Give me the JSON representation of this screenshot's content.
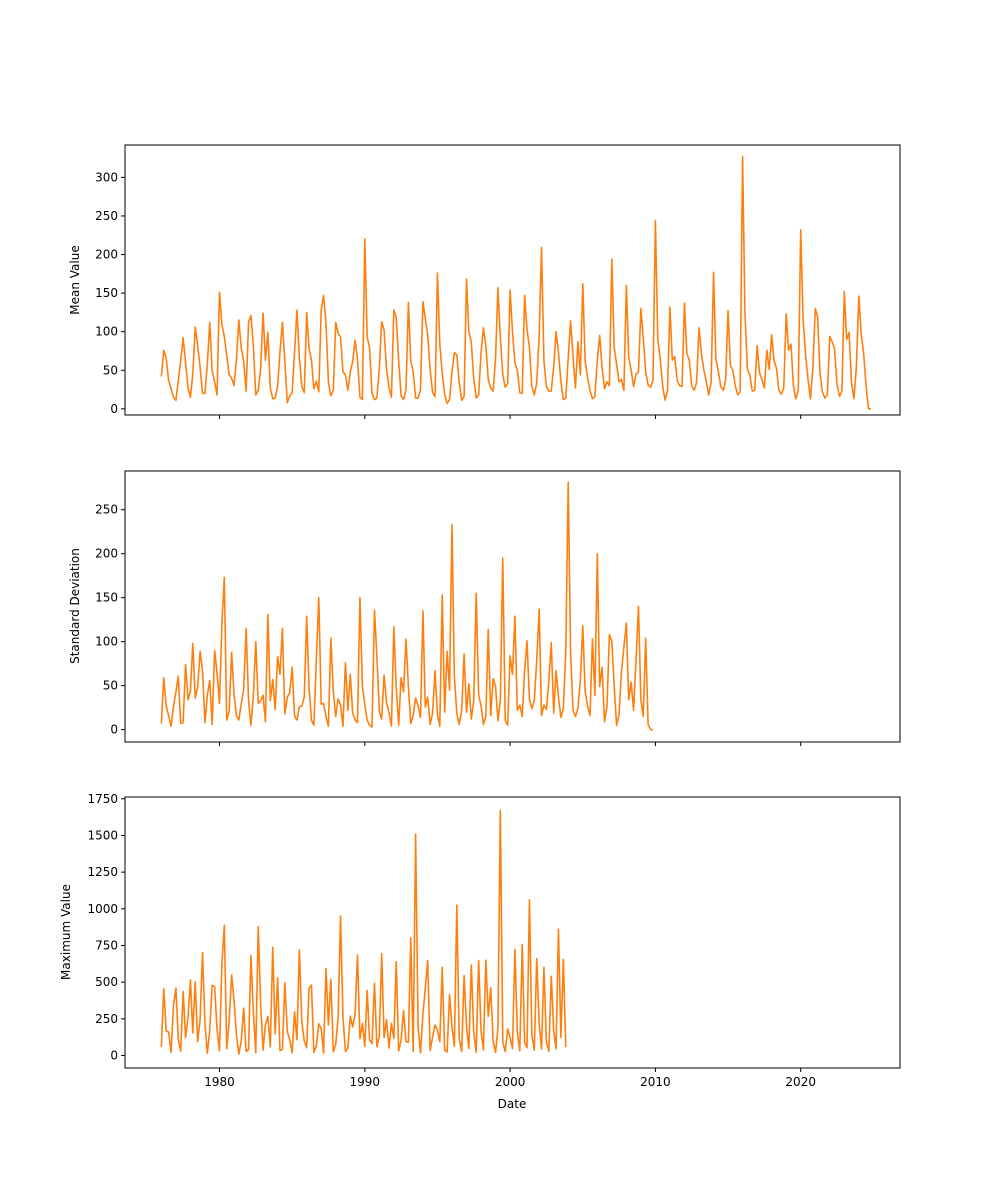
{
  "chart_data": {
    "type": "line",
    "line_color": "#ff7f0e",
    "x_axis": {
      "label": "Date",
      "range": [
        "1973-07-01",
        "2026-11-01"
      ],
      "ticks": [
        "1980",
        "1990",
        "2000",
        "2010",
        "2020"
      ],
      "tick_labels_shown_on": "bottom panel only (shared x axis)"
    },
    "x": [
      "1976-01",
      "1976-03",
      "1976-05",
      "1976-07",
      "1976-09",
      "1976-11",
      "1977-01",
      "1977-03",
      "1977-05",
      "1977-07",
      "1977-09",
      "1977-11",
      "1978-01",
      "1978-03",
      "1978-05",
      "1978-07",
      "1978-09",
      "1978-11",
      "1979-01",
      "1979-03",
      "1979-05",
      "1979-07",
      "1979-09",
      "1979-11",
      "1980-01",
      "1980-03",
      "1980-05",
      "1980-07",
      "1980-09",
      "1980-11",
      "1981-01",
      "1981-03",
      "1981-05",
      "1981-07",
      "1981-09",
      "1981-11",
      "1982-01",
      "1982-03",
      "1982-05",
      "1982-07",
      "1982-09",
      "1982-11",
      "1983-01",
      "1983-03",
      "1983-05",
      "1983-07",
      "1983-09",
      "1983-11",
      "1984-01",
      "1984-03",
      "1984-05",
      "1984-07",
      "1984-09",
      "1984-11",
      "1985-01",
      "1985-03",
      "1985-05",
      "1985-07",
      "1985-09",
      "1985-11",
      "1986-01",
      "1986-03",
      "1986-05",
      "1986-07",
      "1986-09",
      "1986-11",
      "1987-01",
      "1987-03",
      "1987-05",
      "1987-07",
      "1987-09",
      "1987-11",
      "1988-01",
      "1988-03",
      "1988-05",
      "1988-07",
      "1988-09",
      "1988-11",
      "1989-01",
      "1989-03",
      "1989-05",
      "1989-07",
      "1989-09",
      "1989-11",
      "1990-01",
      "1990-03",
      "1990-05",
      "1990-07",
      "1990-09",
      "1990-11",
      "1991-01",
      "1991-03",
      "1991-05",
      "1991-07",
      "1991-09",
      "1991-11",
      "1992-01",
      "1992-03",
      "1992-05",
      "1992-07",
      "1992-09",
      "1992-11",
      "1993-01",
      "1993-03",
      "1993-05",
      "1993-07",
      "1993-09",
      "1993-11",
      "1994-01",
      "1994-03",
      "1994-05",
      "1994-07",
      "1994-09",
      "1994-11",
      "1995-01",
      "1995-03",
      "1995-05",
      "1995-07",
      "1995-09",
      "1995-11",
      "1996-01",
      "1996-03",
      "1996-05",
      "1996-07",
      "1996-09",
      "1996-11",
      "1997-01",
      "1997-03",
      "1997-05",
      "1997-07",
      "1997-09",
      "1997-11",
      "1998-01",
      "1998-03",
      "1998-05",
      "1998-07",
      "1998-09",
      "1998-11",
      "1999-01",
      "1999-03",
      "1999-05",
      "1999-07",
      "1999-09",
      "1999-11",
      "2000-01",
      "2000-03",
      "2000-05",
      "2000-07",
      "2000-09",
      "2000-11",
      "2001-01",
      "2001-03",
      "2001-05",
      "2001-07",
      "2001-09",
      "2001-11",
      "2002-01",
      "2002-03",
      "2002-05",
      "2002-07",
      "2002-09",
      "2002-11",
      "2003-01",
      "2003-03",
      "2003-05",
      "2003-07",
      "2003-09",
      "2003-11",
      "2004-01",
      "2004-03",
      "2004-05",
      "2004-07",
      "2004-09",
      "2004-11",
      "2005-01",
      "2005-03",
      "2005-05",
      "2005-07",
      "2005-09",
      "2005-11",
      "2006-01",
      "2006-03",
      "2006-05",
      "2006-07",
      "2006-09",
      "2006-11",
      "2007-01",
      "2007-03",
      "2007-05",
      "2007-07",
      "2007-09",
      "2007-11",
      "2008-01",
      "2008-03",
      "2008-05",
      "2008-07",
      "2008-09",
      "2008-11",
      "2009-01",
      "2009-03",
      "2009-05",
      "2009-07",
      "2009-09",
      "2009-11",
      "2010-01",
      "2010-03",
      "2010-05",
      "2010-07",
      "2010-09",
      "2010-11",
      "2011-01",
      "2011-03",
      "2011-05",
      "2011-07",
      "2011-09",
      "2011-11",
      "2012-01",
      "2012-03",
      "2012-05",
      "2012-07",
      "2012-09",
      "2012-11",
      "2013-01",
      "2013-03",
      "2013-05",
      "2013-07",
      "2013-09",
      "2013-11",
      "2014-01",
      "2014-03",
      "2014-05",
      "2014-07",
      "2014-09",
      "2014-11",
      "2015-01",
      "2015-03",
      "2015-05",
      "2015-07",
      "2015-09",
      "2015-11",
      "2016-01",
      "2016-03",
      "2016-05",
      "2016-07",
      "2016-09",
      "2016-11",
      "2017-01",
      "2017-03",
      "2017-05",
      "2017-07",
      "2017-09",
      "2017-11",
      "2018-01",
      "2018-03",
      "2018-05",
      "2018-07",
      "2018-09",
      "2018-11",
      "2019-01",
      "2019-03",
      "2019-05",
      "2019-07",
      "2019-09",
      "2019-11",
      "2020-01",
      "2020-03",
      "2020-05",
      "2020-07",
      "2020-09",
      "2020-11",
      "2021-01",
      "2021-03",
      "2021-05",
      "2021-07",
      "2021-09",
      "2021-11",
      "2022-01",
      "2022-03",
      "2022-05",
      "2022-07",
      "2022-09",
      "2022-11",
      "2023-01",
      "2023-03",
      "2023-05",
      "2023-07",
      "2023-09",
      "2023-11",
      "2024-01",
      "2024-03",
      "2024-05",
      "2024-07",
      "2024-09",
      "2024-11"
    ],
    "panels": [
      {
        "ylabel": "Mean Value",
        "ylim": [
          -8,
          342
        ],
        "yticks": [
          0,
          50,
          100,
          150,
          200,
          250,
          300
        ],
        "series": [
          {
            "values": [
              42,
              76,
              66,
              37,
              26,
              15,
              11,
              37,
              62,
              92,
              60,
              27,
              15,
              45,
              106,
              82,
              54,
              20,
              20,
              57,
              112,
              49,
              35,
              18,
              151,
              110,
              94,
              69,
              44,
              40,
              30,
              63,
              115,
              79,
              61,
              23,
              112,
              121,
              82,
              18,
              24,
              52,
              124,
              63,
              99,
              27,
              13,
              14,
              30,
              74,
              112,
              61,
              8,
              17,
              21,
              73,
              128,
              66,
              29,
              21,
              125,
              78,
              63,
              26,
              36,
              22,
              128,
              147,
              111,
              35,
              17,
              24,
              112,
              98,
              93,
              48,
              44,
              24,
              48,
              61,
              89,
              65,
              15,
              12,
              220,
              93,
              79,
              20,
              12,
              14,
              53,
              113,
              102,
              51,
              28,
              15,
              128,
              118,
              63,
              17,
              12,
              24,
              138,
              62,
              48,
              14,
              14,
              25,
              139,
              117,
              96,
              51,
              21,
              16,
              176,
              84,
              46,
              19,
              7,
              12,
              48,
              73,
              70,
              34,
              11,
              16,
              168,
              100,
              86,
              39,
              14,
              18,
              72,
              105,
              82,
              38,
              27,
              23,
              66,
              157,
              92,
              44,
              28,
              33,
              154,
              100,
              60,
              50,
              21,
              20,
              147,
              103,
              80,
              29,
              18,
              34,
              95,
              209,
              62,
              29,
              23,
              23,
              54,
              100,
              73,
              35,
              12,
              14,
              66,
              114,
              68,
              27,
              87,
              44,
              162,
              63,
              40,
              24,
              13,
              16,
              63,
              95,
              54,
              26,
              35,
              30,
              194,
              80,
              58,
              35,
              38,
              24,
              160,
              67,
              50,
              29,
              45,
              48,
              130,
              92,
              48,
              31,
              28,
              37,
              244,
              90,
              65,
              30,
              11,
              24,
              132,
              63,
              68,
              37,
              30,
              29,
              137,
              72,
              63,
              30,
              24,
              34,
              105,
              72,
              51,
              36,
              18,
              34,
              177,
              64,
              49,
              29,
              24,
              37,
              127,
              56,
              50,
              30,
              18,
              22,
              327,
              124,
              51,
              44,
              23,
              24,
              82,
              47,
              38,
              27,
              76,
              51,
              96,
              62,
              53,
              24,
              19,
              27,
              123,
              76,
              84,
              30,
              13,
              24,
              232,
              116,
              71,
              39,
              13,
              52,
              130,
              119,
              46,
              22,
              14,
              18,
              94,
              87,
              78,
              32,
              16,
              23,
              152,
              90,
              99,
              34,
              13,
              55,
              146,
              97,
              72,
              30,
              0,
              0
            ]
          }
        ]
      },
      {
        "ylabel": "Standard Deviation",
        "ylim": [
          -14,
          294
        ],
        "yticks": [
          0,
          50,
          100,
          150,
          200,
          250
        ],
        "series": [
          {
            "values": [
              7,
              59,
              27,
              16,
              4,
              26,
              43,
              61,
              7,
              8,
              74,
              34,
              44,
              98,
              36,
              48,
              89,
              67,
              8,
              39,
              56,
              6,
              90,
              64,
              30,
              120,
              173,
              11,
              21,
              88,
              40,
              16,
              11,
              29,
              46,
              115,
              33,
              5,
              38,
              100,
              30,
              33,
              39,
              9,
              131,
              33,
              57,
              23,
              83,
              63,
              115,
              18,
              37,
              42,
              71,
              16,
              11,
              26,
              27,
              37,
              129,
              48,
              11,
              5,
              80,
              150,
              29,
              30,
              15,
              4,
              104,
              43,
              15,
              35,
              28,
              4,
              76,
              22,
              63,
              19,
              11,
              8,
              150,
              50,
              28,
              11,
              5,
              3,
              136,
              83,
              21,
              12,
              62,
              31,
              19,
              4,
              117,
              48,
              5,
              59,
              43,
              103,
              49,
              7,
              16,
              36,
              27,
              14,
              135,
              26,
              37,
              6,
              19,
              67,
              17,
              4,
              153,
              20,
              89,
              45,
              233,
              61,
              19,
              6,
              22,
              86,
              20,
              52,
              12,
              33,
              155,
              40,
              27,
              6,
              15,
              114,
              16,
              58,
              49,
              10,
              34,
              195,
              11,
              5,
              84,
              63,
              129,
              22,
              28,
              15,
              68,
              101,
              34,
              24,
              34,
              79,
              137,
              16,
              28,
              23,
              55,
              99,
              19,
              67,
              37,
              14,
              24,
              89,
              281,
              88,
              22,
              15,
              24,
              57,
              118,
              44,
              27,
              16,
              103,
              39,
              200,
              49,
              71,
              9,
              26,
              108,
              101,
              50,
              5,
              17,
              66,
              94,
              121,
              34,
              54,
              22,
              80,
              140,
              34,
              15,
              104,
              6,
              0,
              0
            ]
          }
        ]
      },
      {
        "ylabel": "Maximum Value",
        "ylim": [
          -85,
          1762
        ],
        "yticks": [
          0,
          250,
          500,
          750,
          1000,
          1250,
          1500,
          1750
        ],
        "series": [
          {
            "values": [
              59,
              455,
              167,
              160,
              22,
              341,
              460,
              114,
              30,
              437,
              123,
              260,
              515,
              155,
              502,
              95,
              246,
              701,
              217,
              16,
              172,
              479,
              470,
              179,
              33,
              620,
              887,
              47,
              237,
              549,
              377,
              143,
              10,
              99,
              323,
              27,
              42,
              681,
              297,
              18,
              879,
              350,
              37,
              210,
              267,
              59,
              738,
              148,
              530,
              33,
              42,
              496,
              163,
              109,
              19,
              299,
              107,
              720,
              230,
              100,
              53,
              458,
              480,
              21,
              67,
              216,
              184,
              17,
              594,
              208,
              519,
              25,
              76,
              257,
              951,
              262,
              27,
              51,
              268,
              195,
              280,
              686,
              115,
              218,
              62,
              444,
              104,
              82,
              492,
              60,
              131,
              695,
              123,
              245,
              52,
              219,
              115,
              640,
              33,
              103,
              306,
              96,
              91,
              802,
              29,
              1509,
              195,
              18,
              282,
              460,
              647,
              34,
              126,
              208,
              173,
              94,
              601,
              38,
              24,
              415,
              200,
              64,
              1025,
              113,
              28,
              544,
              197,
              48,
              617,
              162,
              21,
              648,
              166,
              38,
              650,
              267,
              462,
              98,
              21,
              188,
              1671,
              91,
              27,
              181,
              125,
              47,
              722,
              158,
              33,
              757,
              89,
              54,
              1061,
              137,
              37,
              661,
              220,
              43,
              601,
              96,
              28,
              541,
              169,
              45,
              861,
              123,
              654,
              57
            ]
          }
        ]
      }
    ]
  }
}
